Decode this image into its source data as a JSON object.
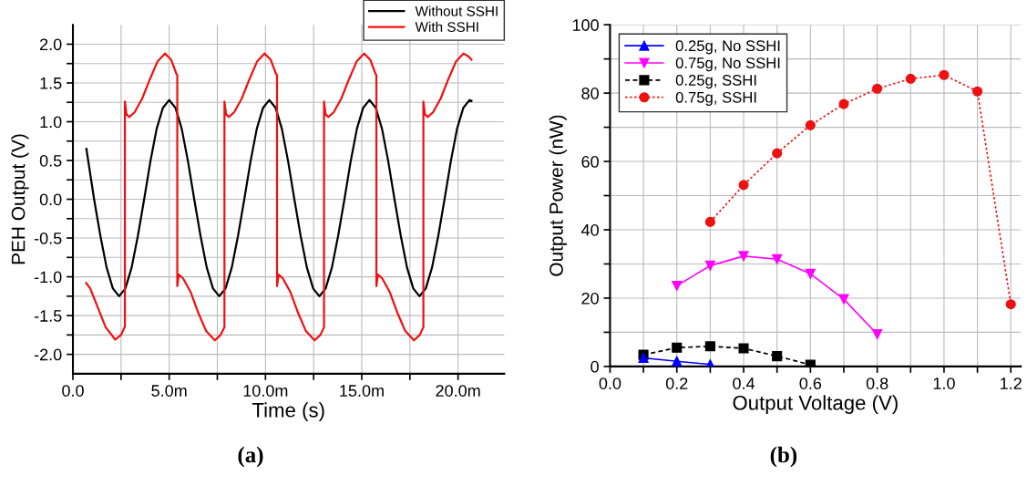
{
  "chart_data": [
    {
      "type": "line",
      "xlabel": "Time (s)",
      "ylabel": "PEH Output (V)",
      "xlim": [
        0,
        22.4
      ],
      "ylim": [
        -2.25,
        2.25
      ],
      "xticks": [
        {
          "value": 0,
          "label": "0.0"
        },
        {
          "value": 2.5,
          "label": null
        },
        {
          "value": 5,
          "label": "5.0m"
        },
        {
          "value": 7.5,
          "label": null
        },
        {
          "value": 10,
          "label": "10.0m"
        },
        {
          "value": 12.5,
          "label": null
        },
        {
          "value": 15,
          "label": "15.0m"
        },
        {
          "value": 17.5,
          "label": null
        },
        {
          "value": 20,
          "label": "20.0m"
        }
      ],
      "yticks": [
        {
          "value": -2.0,
          "label": "-2.0"
        },
        {
          "value": -1.75,
          "label": null
        },
        {
          "value": -1.5,
          "label": "-1.5"
        },
        {
          "value": -1.25,
          "label": null
        },
        {
          "value": -1.0,
          "label": "-1.0"
        },
        {
          "value": -0.75,
          "label": null
        },
        {
          "value": -0.5,
          "label": "-0.5"
        },
        {
          "value": -0.25,
          "label": null
        },
        {
          "value": 0,
          "label": "0.0"
        },
        {
          "value": 0.25,
          "label": null
        },
        {
          "value": 0.5,
          "label": "0.5"
        },
        {
          "value": 0.75,
          "label": null
        },
        {
          "value": 1.0,
          "label": "1.0"
        },
        {
          "value": 1.25,
          "label": null
        },
        {
          "value": 1.5,
          "label": "1.5"
        },
        {
          "value": 1.75,
          "label": null
        },
        {
          "value": 2.0,
          "label": "2.0"
        }
      ],
      "grid": true,
      "legend": "top right",
      "marker": "none",
      "line_style": "solid",
      "annotations": [
        "(a)"
      ],
      "series": [
        {
          "name": "Without SSHI",
          "color": "#000000",
          "x": [
            0.7,
            1.1,
            1.425,
            1.75,
            2.075,
            2.4,
            2.725,
            3.05,
            3.375,
            3.7,
            4.025,
            4.35,
            4.675,
            5.0,
            5.325,
            5.65,
            5.975,
            6.3,
            6.625,
            6.95,
            7.275,
            7.6,
            7.925,
            8.25,
            8.575,
            8.9,
            9.225,
            9.55,
            9.875,
            10.2,
            10.525,
            10.85,
            11.175,
            11.5,
            11.825,
            12.15,
            12.475,
            12.8,
            13.125,
            13.45,
            13.775,
            14.1,
            14.425,
            14.75,
            15.075,
            15.4,
            15.725,
            16.05,
            16.375,
            16.7,
            17.025,
            17.35,
            17.675,
            18.0,
            18.325,
            18.65,
            18.975,
            19.3,
            19.625,
            19.95,
            20.275,
            20.6,
            20.7
          ],
          "values": [
            0.65,
            0.0,
            -0.47,
            -0.88,
            -1.15,
            -1.25,
            -1.15,
            -0.88,
            -0.47,
            0.0,
            0.49,
            0.91,
            1.18,
            1.28,
            1.18,
            0.91,
            0.49,
            0.0,
            -0.47,
            -0.88,
            -1.15,
            -1.25,
            -1.15,
            -0.88,
            -0.47,
            0.0,
            0.49,
            0.91,
            1.18,
            1.28,
            1.18,
            0.91,
            0.49,
            0.0,
            -0.47,
            -0.88,
            -1.15,
            -1.25,
            -1.15,
            -0.88,
            -0.47,
            0.0,
            0.49,
            0.91,
            1.18,
            1.28,
            1.18,
            0.91,
            0.49,
            0.0,
            -0.47,
            -0.88,
            -1.15,
            -1.25,
            -1.15,
            -0.88,
            -0.47,
            0.0,
            0.49,
            0.91,
            1.18,
            1.28,
            1.27
          ]
        },
        {
          "name": "With SSHI",
          "color": "#ee1111",
          "x": [
            0.69,
            0.9,
            1.3,
            1.7,
            2.2,
            2.5,
            2.7,
            2.7,
            2.78,
            2.92,
            3.2,
            3.6,
            4.0,
            4.4,
            4.78,
            5.1,
            5.37,
            5.42,
            5.42,
            5.5,
            5.72,
            6.12,
            6.52,
            6.92,
            7.37,
            7.67,
            7.87,
            7.87,
            7.95,
            8.09,
            8.37,
            8.77,
            9.17,
            9.57,
            9.95,
            10.27,
            10.54,
            10.6,
            10.6,
            10.68,
            10.9,
            11.3,
            11.7,
            12.1,
            12.55,
            12.85,
            13.04,
            13.04,
            13.12,
            13.26,
            13.54,
            13.94,
            14.34,
            14.74,
            15.12,
            15.44,
            15.71,
            15.76,
            15.76,
            15.84,
            16.06,
            16.46,
            16.86,
            17.26,
            17.71,
            18.01,
            18.2,
            18.2,
            18.28,
            18.42,
            18.7,
            19.1,
            19.5,
            19.9,
            20.28,
            20.55,
            20.7
          ],
          "values": [
            -1.08,
            -1.15,
            -1.4,
            -1.65,
            -1.81,
            -1.75,
            -1.64,
            1.26,
            1.1,
            1.06,
            1.12,
            1.3,
            1.55,
            1.78,
            1.88,
            1.8,
            1.62,
            1.6,
            -1.12,
            -0.97,
            -1.02,
            -1.2,
            -1.47,
            -1.7,
            -1.82,
            -1.75,
            -1.65,
            1.26,
            1.1,
            1.06,
            1.12,
            1.3,
            1.55,
            1.78,
            1.88,
            1.8,
            1.62,
            1.6,
            -1.12,
            -0.97,
            -1.02,
            -1.2,
            -1.47,
            -1.7,
            -1.82,
            -1.75,
            -1.65,
            1.26,
            1.1,
            1.06,
            1.12,
            1.3,
            1.55,
            1.78,
            1.88,
            1.8,
            1.62,
            1.6,
            -1.12,
            -0.97,
            -1.02,
            -1.2,
            -1.47,
            -1.7,
            -1.82,
            -1.75,
            -1.65,
            1.26,
            1.1,
            1.06,
            1.12,
            1.3,
            1.55,
            1.78,
            1.88,
            1.84,
            1.8
          ]
        }
      ]
    },
    {
      "type": "line",
      "xlabel": "Output Voltage (V)",
      "ylabel": "Output Power (nW)",
      "xlim": [
        0,
        1.23
      ],
      "ylim": [
        0,
        100
      ],
      "xticks": [
        {
          "value": 0,
          "label": "0.0"
        },
        {
          "value": 0.1,
          "label": null
        },
        {
          "value": 0.2,
          "label": "0.2"
        },
        {
          "value": 0.3,
          "label": null
        },
        {
          "value": 0.4,
          "label": "0.4"
        },
        {
          "value": 0.5,
          "label": null
        },
        {
          "value": 0.6,
          "label": "0.6"
        },
        {
          "value": 0.7,
          "label": null
        },
        {
          "value": 0.8,
          "label": "0.8"
        },
        {
          "value": 0.9,
          "label": null
        },
        {
          "value": 1.0,
          "label": "1.0"
        },
        {
          "value": 1.1,
          "label": null
        },
        {
          "value": 1.2,
          "label": "1.2"
        }
      ],
      "yticks": [
        0,
        {
          "value": 10,
          "label": null
        },
        20,
        {
          "value": 30,
          "label": null
        },
        40,
        {
          "value": 50,
          "label": null
        },
        60,
        {
          "value": 70,
          "label": null
        },
        80,
        {
          "value": 90,
          "label": null
        },
        100
      ],
      "grid": true,
      "legend": "top left",
      "annotations": [
        "(b)"
      ],
      "series": [
        {
          "name": "0.25g, No SSHI",
          "color": "#0000ff",
          "marker": "triangle",
          "line_style": "solid",
          "x": [
            0.1,
            0.2,
            0.3
          ],
          "values": [
            2.5,
            1.5,
            0.6
          ]
        },
        {
          "name": "0.75g, No SSHI",
          "color": "#ff00ff",
          "marker": "triangle_down",
          "line_style": "solid",
          "x": [
            0.2,
            0.3,
            0.4,
            0.5,
            0.6,
            0.7,
            0.8
          ],
          "values": [
            23.6,
            29.5,
            32.3,
            31.4,
            27.1,
            19.7,
            9.4
          ]
        },
        {
          "name": "0.25g, SSHI",
          "color": "#000000",
          "marker": "square",
          "line_style": "dashed",
          "x": [
            0.1,
            0.2,
            0.3,
            0.4,
            0.5,
            0.6
          ],
          "values": [
            3.4,
            5.5,
            5.9,
            5.3,
            3.0,
            0.5
          ]
        },
        {
          "name": "0.75g, SSHI",
          "color": "#ee1111",
          "marker": "circle",
          "line_style": "dotted",
          "x": [
            0.3,
            0.4,
            0.5,
            0.6,
            0.7,
            0.8,
            0.9,
            1.0,
            1.1,
            1.2
          ],
          "values": [
            42.3,
            53.1,
            62.4,
            70.6,
            76.8,
            81.3,
            84.2,
            85.3,
            80.5,
            18.2
          ]
        }
      ]
    }
  ]
}
